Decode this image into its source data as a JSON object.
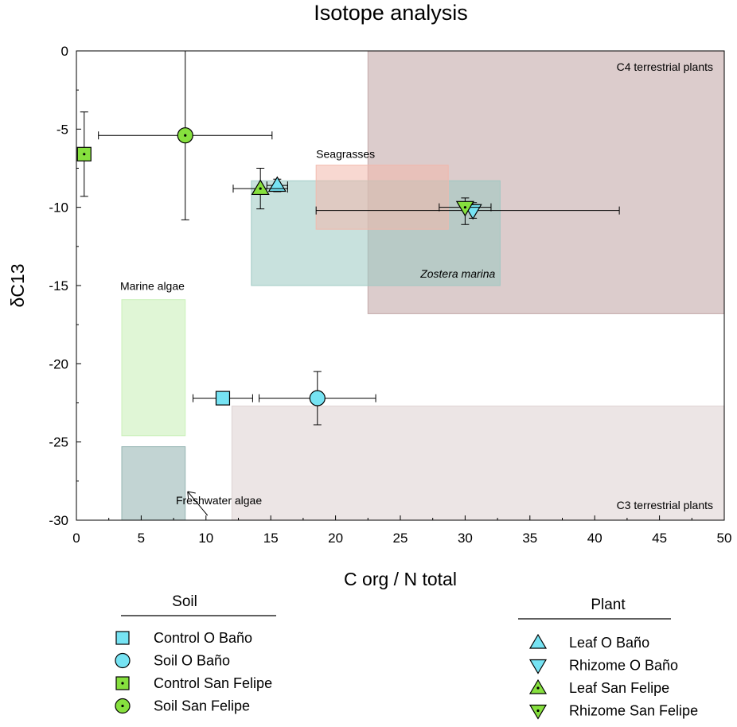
{
  "chart_data": {
    "type": "scatter",
    "title": "Isotope analysis",
    "xlabel": "C org / N total",
    "ylabel": "δC13",
    "xlim": [
      0,
      50
    ],
    "ylim": [
      -30,
      0
    ],
    "xticks": [
      0,
      5,
      10,
      15,
      20,
      25,
      30,
      35,
      40,
      45,
      50
    ],
    "yticks": [
      0,
      -5,
      -10,
      -15,
      -20,
      -25,
      -30
    ],
    "grid": false,
    "regions": [
      {
        "label": "C4 terrestrial plants",
        "x": [
          22.5,
          50
        ],
        "y": [
          -16.8,
          0
        ],
        "color": "#bfa3a3"
      },
      {
        "label": "C3 terrestrial plants",
        "x": [
          12,
          50
        ],
        "y": [
          -30,
          -22.7
        ],
        "color": "#ddcfcf"
      },
      {
        "label": "Zostera marina",
        "italic": true,
        "x": [
          13.5,
          32.7
        ],
        "y": [
          -15,
          -8.3
        ],
        "color": "#9bc8c1"
      },
      {
        "label": "Seagrasses",
        "x": [
          18.5,
          28.7
        ],
        "y": [
          -11.4,
          -7.3
        ],
        "color": "#f2b8ac"
      },
      {
        "label": "Marine algae",
        "x": [
          3.5,
          8.4
        ],
        "y": [
          -24.6,
          -15.9
        ],
        "color": "#c7efb4"
      },
      {
        "label": "Freshwater algae",
        "x": [
          3.5,
          8.4
        ],
        "y": [
          -30,
          -25.3
        ],
        "color": "#8fb0ae"
      }
    ],
    "series": [
      {
        "name": "Control O Baño",
        "group": "Soil",
        "marker": "square",
        "color": "#76e3f3",
        "points": [
          {
            "x": 11.3,
            "y": -22.2,
            "xerr": [
              2.3,
              2.3
            ],
            "yerr": [
              0,
              0
            ]
          }
        ]
      },
      {
        "name": "Soil O Baño",
        "group": "Soil",
        "marker": "circle",
        "color": "#76e3f3",
        "points": [
          {
            "x": 18.6,
            "y": -22.2,
            "xerr": [
              4.5,
              4.5
            ],
            "yerr": [
              1.7,
              1.7
            ]
          }
        ]
      },
      {
        "name": "Control San Felipe",
        "group": "Soil",
        "marker": "square-dot",
        "color": "#86e03e",
        "points": [
          {
            "x": 0.6,
            "y": -6.6,
            "xerr": [
              0,
              0
            ],
            "yerr": [
              2.7,
              2.7
            ]
          }
        ]
      },
      {
        "name": "Soil San Felipe",
        "group": "Soil",
        "marker": "circle-dot",
        "color": "#86e03e",
        "points": [
          {
            "x": 8.4,
            "y": -5.4,
            "xerr": [
              6.7,
              6.7
            ],
            "yerr": [
              5.4,
              5.4
            ]
          }
        ]
      },
      {
        "name": "Leaf O Baño",
        "group": "Plant",
        "marker": "triangle-up",
        "color": "#76e3f3",
        "points": [
          {
            "x": 15.5,
            "y": -8.6,
            "xerr": [
              0.8,
              0.8
            ],
            "yerr": [
              0.4,
              0.4
            ]
          }
        ]
      },
      {
        "name": "Rhizome O Baño",
        "group": "Plant",
        "marker": "triangle-down",
        "color": "#76e3f3",
        "points": [
          {
            "x": 30.6,
            "y": -10.2,
            "xerr": [
              12.1,
              11.3
            ],
            "yerr": [
              0.5,
              0.5
            ]
          }
        ]
      },
      {
        "name": "Leaf San Felipe",
        "group": "Plant",
        "marker": "triangle-up-dot",
        "color": "#86e03e",
        "points": [
          {
            "x": 14.2,
            "y": -8.8,
            "xerr": [
              2.1,
              2.1
            ],
            "yerr": [
              1.3,
              1.3
            ]
          }
        ]
      },
      {
        "name": "Rhizome San Felipe",
        "group": "Plant",
        "marker": "triangle-down-dot",
        "color": "#86e03e",
        "points": [
          {
            "x": 30.0,
            "y": -10.0,
            "xerr": [
              2.0,
              2.0
            ],
            "yerr": [
              1.1,
              0.6
            ]
          }
        ]
      }
    ],
    "legend": [
      {
        "title": "Soil",
        "entries": [
          "Control O Baño",
          "Soil O Baño",
          "Control San Felipe",
          "Soil San Felipe"
        ]
      },
      {
        "title": "Plant",
        "entries": [
          "Leaf O Baño",
          "Rhizome O Baño",
          "Leaf San Felipe",
          "Rhizome San Felipe"
        ]
      }
    ],
    "legend_placement": "below"
  }
}
